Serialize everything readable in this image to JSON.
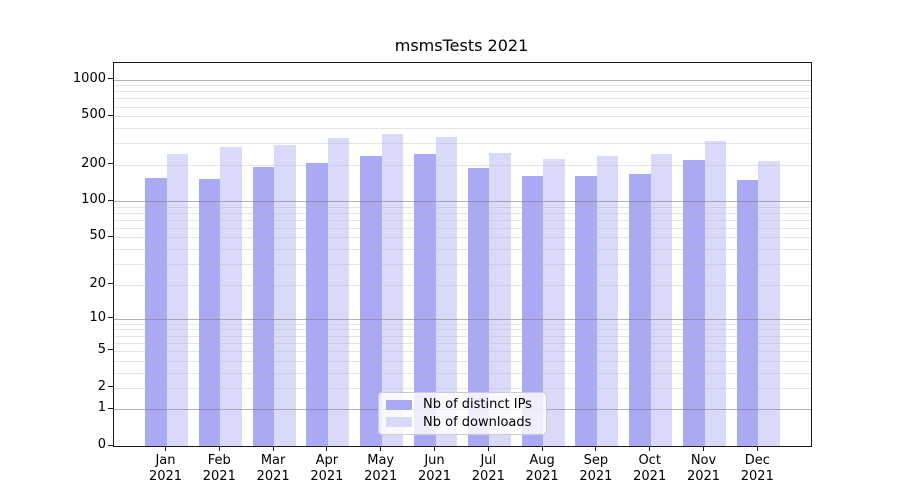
{
  "chart_data": {
    "type": "bar",
    "title": "msmsTests 2021",
    "year": "2021",
    "months": [
      "Jan",
      "Feb",
      "Mar",
      "Apr",
      "May",
      "Jun",
      "Jul",
      "Aug",
      "Sep",
      "Oct",
      "Nov",
      "Dec"
    ],
    "categories": [
      "Jan 2021",
      "Feb 2021",
      "Mar 2021",
      "Apr 2021",
      "May 2021",
      "Jun 2021",
      "Jul 2021",
      "Aug 2021",
      "Sep 2021",
      "Oct 2021",
      "Nov 2021",
      "Dec 2021"
    ],
    "series": [
      {
        "name": "Nb of distinct IPs",
        "color": "#a9a9f4",
        "values": [
          156,
          153,
          191,
          205,
          234,
          246,
          187,
          160,
          160,
          168,
          220,
          150
        ]
      },
      {
        "name": "Nb of downloads",
        "color": "#d9d9f9",
        "values": [
          247,
          278,
          288,
          332,
          356,
          336,
          250,
          223,
          235,
          246,
          312,
          216
        ]
      }
    ],
    "yscale": "log1p",
    "y_ticks": [
      0,
      1,
      2,
      5,
      10,
      20,
      50,
      100,
      200,
      500,
      1000
    ],
    "ylim": [
      0,
      1365
    ],
    "grid": true,
    "legend_position": "lower center"
  }
}
